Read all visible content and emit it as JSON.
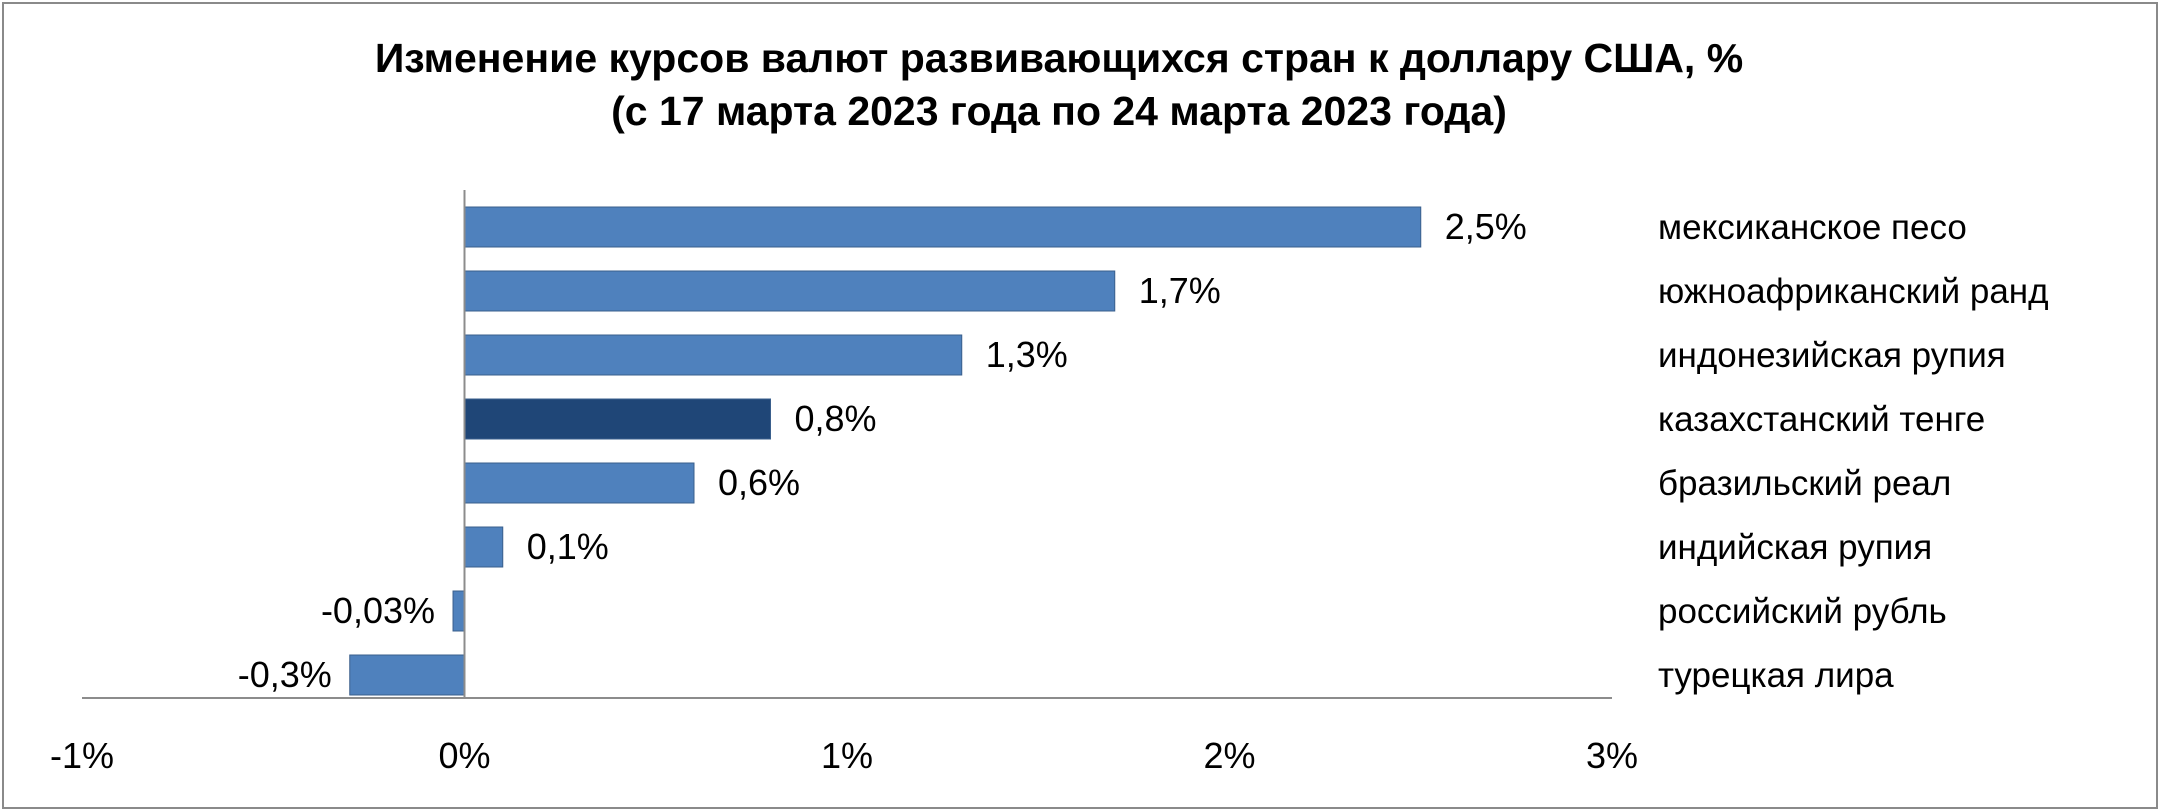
{
  "chart_data": {
    "type": "bar",
    "orientation": "horizontal",
    "title": "Изменение курсов валют развивающихся стран к доллару США, %",
    "subtitle": "(с 17 марта 2023 года по 24 марта 2023 года)",
    "categories": [
      "мексиканское песо",
      "южноафриканский ранд",
      "индонезийская рупия",
      "казахстанский тенге",
      "бразильский реал",
      "индийская рупия",
      "российский рубль",
      "турецкая лира"
    ],
    "values": [
      2.5,
      1.7,
      1.3,
      0.8,
      0.6,
      0.1,
      -0.03,
      -0.3
    ],
    "data_labels": [
      "2,5%",
      "1,7%",
      "1,3%",
      "0,8%",
      "0,6%",
      "0,1%",
      "-0,03%",
      "-0,3%"
    ],
    "highlight_index": 3,
    "xlim": [
      -1,
      3
    ],
    "x_ticks": [
      -1,
      0,
      1,
      2,
      3
    ],
    "x_tick_labels": [
      "-1%",
      "0%",
      "1%",
      "2%",
      "3%"
    ],
    "xlabel": "",
    "ylabel": "",
    "grid": false,
    "legend": "none",
    "colors": {
      "bar": "#4f81bd",
      "highlight": "#1f4677",
      "bar_edge": "#3a5f8c",
      "axis": "#8c8c8c"
    }
  }
}
